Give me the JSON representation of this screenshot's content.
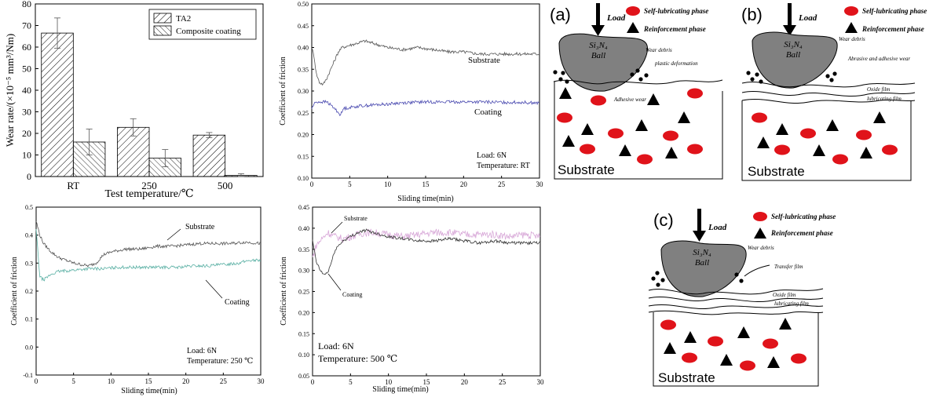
{
  "chart_data": [
    {
      "type": "bar",
      "categories": [
        "RT",
        "250",
        "500"
      ],
      "series": [
        {
          "name": "TA2",
          "values": [
            66.5,
            22.8,
            19.2
          ],
          "errors": [
            7.0,
            4.0,
            1.2
          ],
          "pattern": "diag-back"
        },
        {
          "name": "Composite coating",
          "values": [
            16.0,
            8.5,
            0.5
          ],
          "errors": [
            6.0,
            4.0,
            0.8
          ],
          "pattern": "diag-fwd"
        }
      ],
      "xlabel": "Test temperature/℃",
      "ylabel": "Wear rate/(×10⁻⁵ mm³/Nm)",
      "ylim": [
        0,
        80
      ],
      "yticks": [
        "0",
        "10",
        "20",
        "30",
        "40",
        "50",
        "60",
        "70",
        "80"
      ],
      "legend": "top-right",
      "grid": false
    },
    {
      "type": "line",
      "xlim": [
        0,
        30
      ],
      "ylim": [
        0.1,
        0.5
      ],
      "xticks": [
        "0",
        "5",
        "10",
        "15",
        "20",
        "25",
        "30"
      ],
      "yticks": [
        "0.10",
        "0.15",
        "0.20",
        "0.25",
        "0.30",
        "0.35",
        "0.40",
        "0.45",
        "0.50"
      ],
      "xlabel": "Sliding time(min)",
      "ylabel": "Coefficient of friction",
      "annotations": [
        "Load: 6N",
        "Temperature: RT"
      ],
      "series": [
        {
          "name": "Substrate",
          "color": "#555555",
          "x": [
            0,
            0.3,
            0.6,
            1,
            1.5,
            2,
            2.5,
            3,
            3.5,
            4,
            5,
            6,
            7,
            8,
            10,
            12,
            14,
            16,
            18,
            20,
            22,
            24,
            26,
            28,
            30
          ],
          "y": [
            0.4,
            0.38,
            0.34,
            0.32,
            0.315,
            0.33,
            0.35,
            0.37,
            0.39,
            0.4,
            0.405,
            0.41,
            0.415,
            0.41,
            0.4,
            0.395,
            0.4,
            0.395,
            0.39,
            0.39,
            0.385,
            0.385,
            0.385,
            0.385,
            0.385
          ]
        },
        {
          "name": "Coating",
          "color": "#4a4ab0",
          "x": [
            0,
            0.3,
            0.6,
            1,
            2,
            3,
            3.8,
            4.2,
            5,
            6,
            8,
            10,
            12,
            15,
            18,
            20,
            22,
            25,
            28,
            30
          ],
          "y": [
            0.26,
            0.27,
            0.275,
            0.275,
            0.275,
            0.26,
            0.245,
            0.26,
            0.262,
            0.265,
            0.268,
            0.27,
            0.273,
            0.275,
            0.275,
            0.275,
            0.275,
            0.274,
            0.274,
            0.272
          ]
        }
      ]
    },
    {
      "type": "line",
      "xlim": [
        0,
        30
      ],
      "ylim": [
        -0.1,
        0.5
      ],
      "xticks": [
        "0",
        "5",
        "10",
        "15",
        "20",
        "25",
        "30"
      ],
      "yticks": [
        "-0.1",
        "0.0",
        "0.1",
        "0.2",
        "0.3",
        "0.4",
        "0.5"
      ],
      "xlabel": "Sliding time(min)",
      "ylabel": "Coefficient of friction",
      "annotations": [
        "Load: 6N",
        "Temperature: 250 ℃"
      ],
      "series": [
        {
          "name": "Substrate",
          "color": "#555555",
          "x": [
            0,
            0.5,
            1,
            2,
            3,
            4,
            5,
            6,
            7,
            8,
            9,
            10,
            12,
            14,
            16,
            18,
            20,
            22,
            24,
            26,
            28,
            30
          ],
          "y": [
            0.45,
            0.4,
            0.37,
            0.34,
            0.32,
            0.31,
            0.3,
            0.295,
            0.29,
            0.3,
            0.33,
            0.34,
            0.35,
            0.35,
            0.36,
            0.36,
            0.365,
            0.37,
            0.37,
            0.37,
            0.375,
            0.37
          ]
        },
        {
          "name": "Coating",
          "color": "#5ab0a4",
          "x": [
            0,
            0.5,
            1,
            2,
            3,
            5,
            7,
            9,
            11,
            13,
            15,
            17,
            19,
            21,
            23,
            25,
            27,
            28.5,
            30
          ],
          "y": [
            0.42,
            0.25,
            0.24,
            0.26,
            0.27,
            0.275,
            0.28,
            0.28,
            0.285,
            0.285,
            0.285,
            0.285,
            0.285,
            0.29,
            0.29,
            0.295,
            0.3,
            0.31,
            0.31
          ]
        }
      ]
    },
    {
      "type": "line",
      "xlim": [
        0,
        30
      ],
      "ylim": [
        0.05,
        0.45
      ],
      "xticks": [
        "0",
        "5",
        "10",
        "15",
        "20",
        "25",
        "30"
      ],
      "yticks": [
        "0.05",
        "0.10",
        "0.15",
        "0.20",
        "0.25",
        "0.30",
        "0.35",
        "0.40",
        "0.45"
      ],
      "xlabel": "Sliding time(min)",
      "ylabel": "Coefficient of friction",
      "annotations": [
        "Load: 6N",
        "Temperature: 500 ℃"
      ],
      "series": [
        {
          "name": "Substrate",
          "color": "#d8a8d8",
          "x": [
            0,
            0.5,
            1,
            1.5,
            2,
            2.5,
            3,
            4,
            5,
            6,
            7,
            8,
            10,
            12,
            14,
            16,
            18,
            20,
            22,
            24,
            26,
            28,
            30
          ],
          "y": [
            0.33,
            0.36,
            0.37,
            0.38,
            0.39,
            0.385,
            0.38,
            0.375,
            0.38,
            0.385,
            0.39,
            0.39,
            0.385,
            0.38,
            0.385,
            0.39,
            0.39,
            0.385,
            0.385,
            0.385,
            0.38,
            0.385,
            0.38
          ]
        },
        {
          "name": "Coating",
          "color": "#333333",
          "x": [
            0,
            0.5,
            1,
            1.5,
            2,
            2.5,
            3,
            4,
            5,
            6,
            7,
            8,
            10,
            12,
            14,
            16,
            18,
            20,
            22,
            24,
            26,
            28,
            30
          ],
          "y": [
            0.37,
            0.32,
            0.3,
            0.29,
            0.295,
            0.32,
            0.35,
            0.37,
            0.38,
            0.39,
            0.395,
            0.39,
            0.38,
            0.375,
            0.37,
            0.37,
            0.375,
            0.37,
            0.365,
            0.37,
            0.365,
            0.365,
            0.365
          ]
        }
      ]
    }
  ],
  "schematics": {
    "a": {
      "tag": "(a)",
      "load": "Load",
      "ball": [
        "Si₃N₄",
        "Ball"
      ],
      "legend_self": "Self-lubricating phase",
      "legend_reinf": "Reinforcement phase",
      "labels": [
        "Wear debris",
        "plastic deformation",
        "Adhesive wear"
      ],
      "substrate": "Substrate"
    },
    "b": {
      "tag": "(b)",
      "load": "Load",
      "ball": [
        "Si₃N₄",
        "Ball"
      ],
      "legend_self": "Self-lubricating phase",
      "legend_reinf": "Reinforcement phase",
      "labels": [
        "Wear debris",
        "Abrasive and adhesive wear",
        "Oxide film",
        "lubricating film"
      ],
      "substrate": "Substrate"
    },
    "c": {
      "tag": "(c)",
      "load": "Load",
      "ball": [
        "Si₃N₄",
        "Ball"
      ],
      "legend_self": "Self-lubricating phase",
      "legend_reinf": "Reinforcement phase",
      "labels": [
        "Wear debris",
        "Transfer film",
        "Oxide film",
        "lubricating film"
      ],
      "substrate": "Substrate"
    }
  },
  "colors": {
    "particle_red": "#e0131a",
    "triangle": "#000000",
    "ball": "#808080"
  }
}
